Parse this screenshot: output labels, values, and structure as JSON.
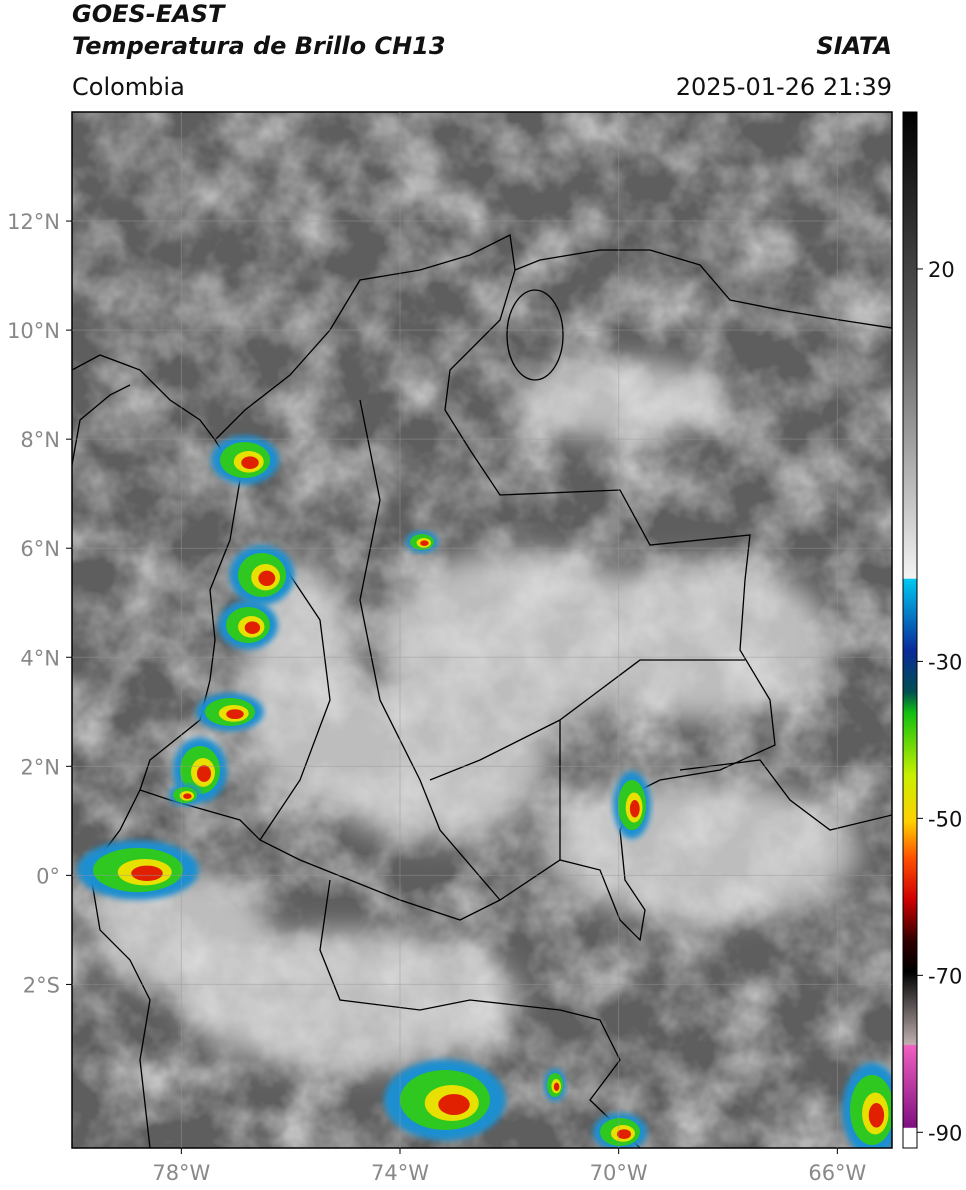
{
  "header": {
    "title": "GOES-EAST",
    "subtitle": "Temperatura de Brillo CH13",
    "source": "SIATA",
    "region": "Colombia",
    "timestamp": "2025-01-26 21:39"
  },
  "map": {
    "lon_range": [
      -80,
      -65
    ],
    "lat_range": [
      -5,
      14
    ],
    "lon_ticks": [
      {
        "value": -78,
        "label": "78°W"
      },
      {
        "value": -74,
        "label": "74°W"
      },
      {
        "value": -70,
        "label": "70°W"
      },
      {
        "value": -66,
        "label": "66°W"
      }
    ],
    "lat_ticks": [
      {
        "value": 12,
        "label": "12°N"
      },
      {
        "value": 10,
        "label": "10°N"
      },
      {
        "value": 8,
        "label": "8°N"
      },
      {
        "value": 6,
        "label": "6°N"
      },
      {
        "value": 4,
        "label": "4°N"
      },
      {
        "value": 2,
        "label": "2°N"
      },
      {
        "value": 0,
        "label": "0°"
      },
      {
        "value": -2,
        "label": "2°S"
      }
    ]
  },
  "colorbar": {
    "range": [
      -92,
      40
    ],
    "ticks": [
      20,
      -30,
      -50,
      -70,
      -90
    ]
  }
}
